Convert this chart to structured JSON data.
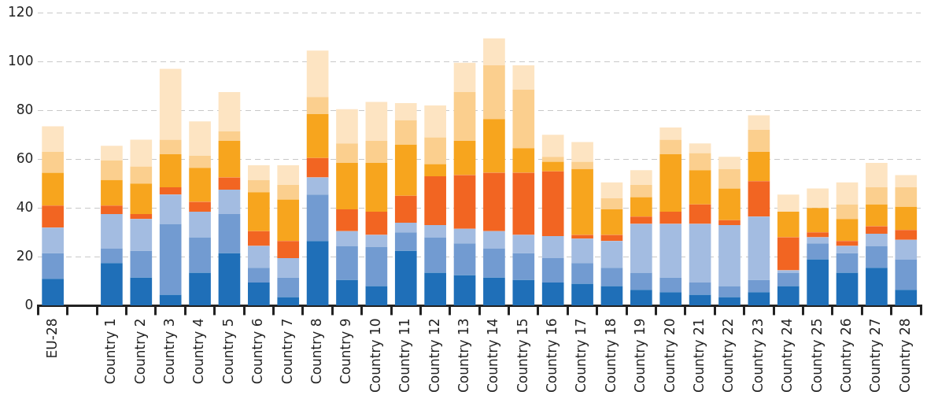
{
  "chart_data": {
    "type": "bar",
    "stacked": true,
    "grid": "y",
    "legend": false,
    "categories": [
      "EU-28",
      null,
      "Country 1",
      "Country 2",
      "Country 3",
      "Country 4",
      "Country 5",
      "Country 6",
      "Country 7",
      "Country 8",
      "Country 9",
      "Country 10",
      "Country 11",
      "Country 12",
      "Country 13",
      "Country 14",
      "Country 15",
      "Country 16",
      "Country 17",
      "Country 18",
      "Country 19",
      "Country 20",
      "Country 21",
      "Country 22",
      "Country 23",
      "Country 24",
      "Country 25",
      "Country 26",
      "Country 27",
      "Country 28"
    ],
    "ylim": [
      0,
      120
    ],
    "yticks": [
      0,
      20,
      40,
      60,
      80,
      100,
      120
    ],
    "series": [
      {
        "color": "#1f6fb8",
        "values": [
          11,
          null,
          17.5,
          11.5,
          4.5,
          13.5,
          21.5,
          9.5,
          3.5,
          26.5,
          10.5,
          8,
          22.5,
          13.5,
          12.5,
          11.5,
          10.5,
          9.5,
          9,
          8,
          6.5,
          5.5,
          4.5,
          3.5,
          5.5,
          8,
          19,
          13.5,
          15.5,
          6.5
        ]
      },
      {
        "color": "#729bd1",
        "values": [
          10.5,
          null,
          6,
          11,
          29,
          14.5,
          16,
          6,
          8,
          19,
          14,
          16,
          7.5,
          14.5,
          13,
          12,
          11,
          10,
          8.5,
          7.5,
          7,
          6,
          5,
          4.5,
          5,
          5.5,
          6.5,
          8,
          9,
          12.5
        ]
      },
      {
        "color": "#a3bce1",
        "values": [
          10.5,
          null,
          14,
          13,
          12,
          10.5,
          10,
          9,
          8,
          7,
          6,
          5,
          4,
          5,
          6,
          7,
          7.5,
          9,
          10,
          11,
          20,
          22,
          24,
          25,
          26,
          1,
          2.5,
          3,
          5,
          8
        ]
      },
      {
        "color": "#f26522",
        "values": [
          9,
          null,
          3.5,
          2,
          3,
          4,
          5,
          6,
          7,
          8,
          9,
          9.5,
          11,
          20,
          22,
          24,
          25.5,
          26.5,
          1.5,
          2.5,
          3,
          5,
          8,
          2,
          14.5,
          13.5,
          2,
          2,
          3,
          4
        ]
      },
      {
        "color": "#f7a51e",
        "values": [
          13.5,
          null,
          10.5,
          12.5,
          13.5,
          14,
          15,
          16,
          17,
          18,
          19,
          20,
          21,
          5,
          14,
          22,
          10,
          4,
          27,
          10.5,
          8,
          23.5,
          14,
          13,
          12,
          10.5,
          10,
          9,
          9,
          9.5
        ]
      },
      {
        "color": "#fbcf8e",
        "values": [
          8.5,
          null,
          8,
          7,
          6,
          5,
          4,
          5,
          6,
          7,
          8,
          9,
          10,
          11,
          20,
          22,
          24,
          2,
          3,
          4.5,
          5,
          6,
          7,
          8,
          9,
          0,
          0,
          6,
          7,
          8
        ]
      },
      {
        "color": "#fde4c2",
        "values": [
          10.5,
          null,
          6,
          11,
          29,
          14,
          16,
          6,
          8,
          19,
          14,
          16,
          7,
          13,
          12,
          11,
          10,
          9,
          8,
          6.5,
          6,
          5,
          4,
          5,
          6,
          7,
          8,
          9,
          10,
          5
        ]
      }
    ]
  }
}
